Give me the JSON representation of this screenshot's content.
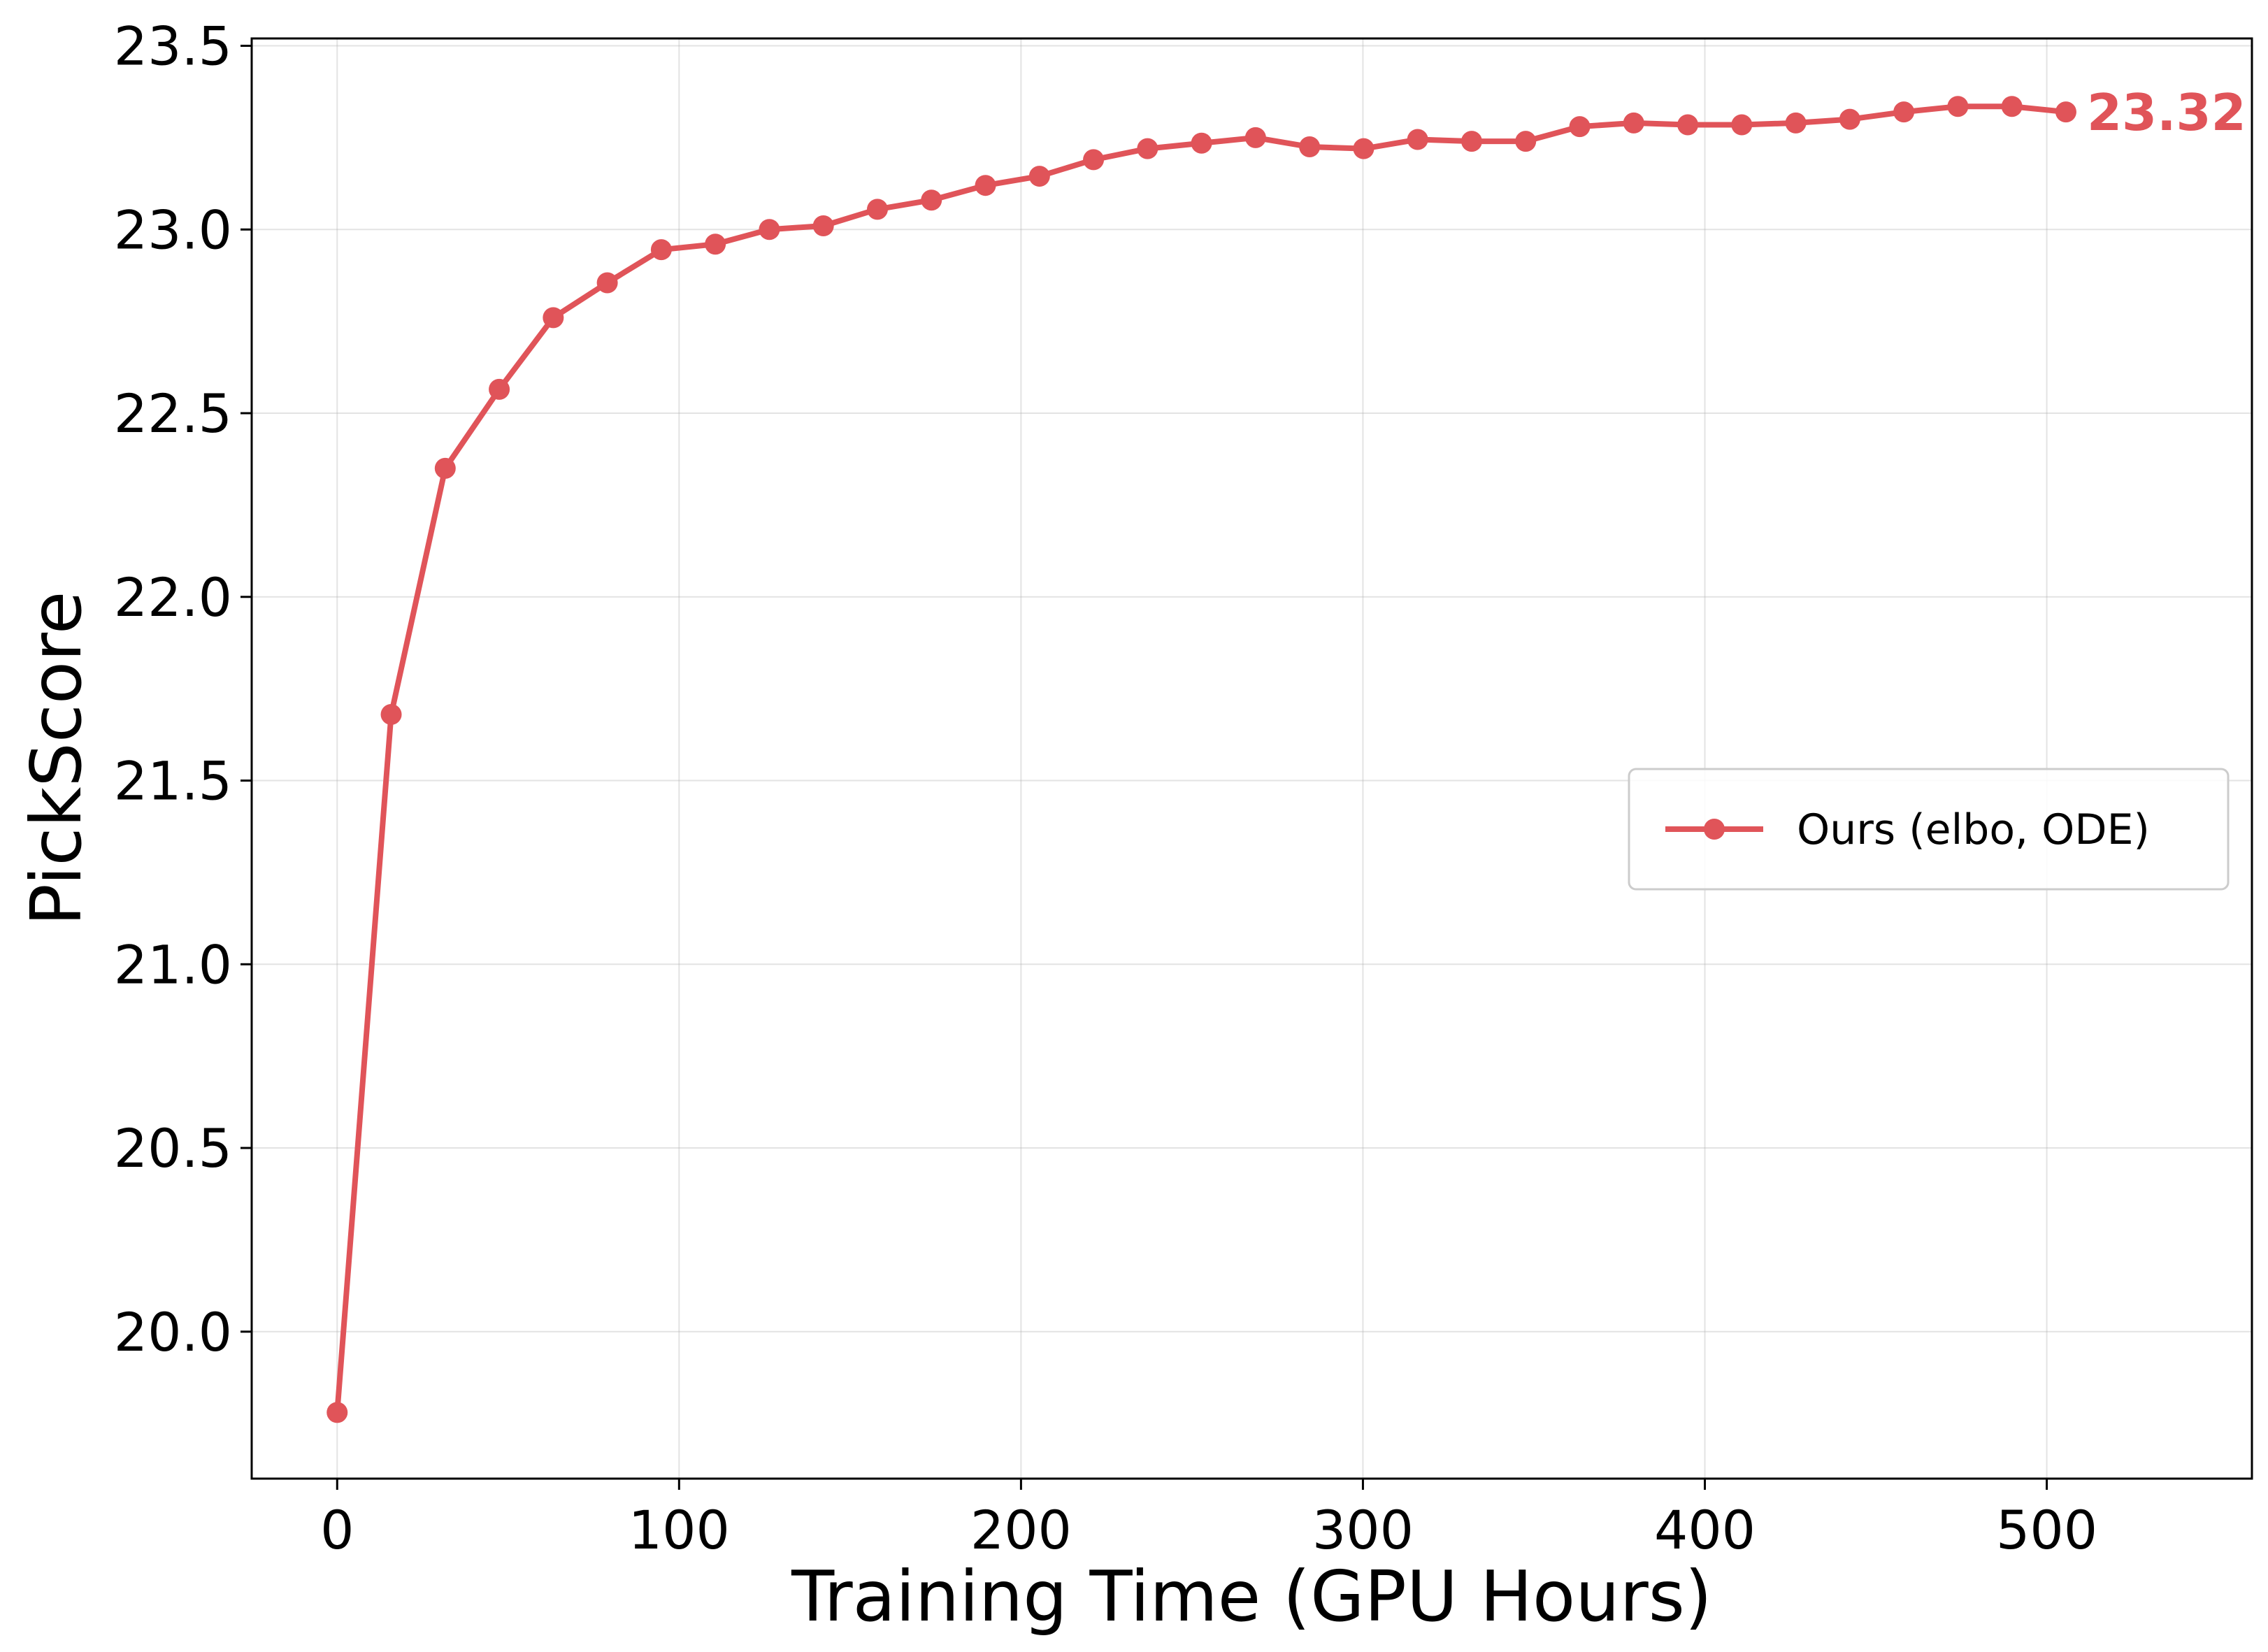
{
  "chart_data": {
    "type": "line",
    "xlabel": "Training Time (GPU Hours)",
    "ylabel": "PickScore",
    "xlim": [
      -25,
      560
    ],
    "ylim": [
      19.6,
      23.52
    ],
    "xticks": [
      0,
      100,
      200,
      300,
      400,
      500
    ],
    "xtick_labels": [
      "0",
      "100",
      "200",
      "300",
      "400",
      "500"
    ],
    "yticks": [
      20.0,
      20.5,
      21.0,
      21.5,
      22.0,
      22.5,
      23.0,
      23.5
    ],
    "ytick_labels": [
      "20.0",
      "20.5",
      "21.0",
      "21.5",
      "22.0",
      "22.5",
      "23.0",
      "23.5"
    ],
    "grid": true,
    "legend_position": "center-right",
    "series": [
      {
        "name": "Ours (elbo, ODE)",
        "color": "#e05459",
        "marker": "circle",
        "x": [
          0,
          15.8,
          31.6,
          47.4,
          63.2,
          79.0,
          94.8,
          110.6,
          126.4,
          142.2,
          158.0,
          173.8,
          189.6,
          205.4,
          221.2,
          237.0,
          252.8,
          268.6,
          284.4,
          300.2,
          316.0,
          331.8,
          347.6,
          363.4,
          379.2,
          395.0,
          410.8,
          426.6,
          442.4,
          458.2,
          474.0,
          489.8,
          505.6
        ],
        "y": [
          19.78,
          21.68,
          22.35,
          22.565,
          22.76,
          22.855,
          22.945,
          22.96,
          23.0,
          23.01,
          23.055,
          23.08,
          23.12,
          23.145,
          23.19,
          23.22,
          23.235,
          23.25,
          23.225,
          23.22,
          23.245,
          23.24,
          23.24,
          23.28,
          23.29,
          23.285,
          23.285,
          23.29,
          23.3,
          23.32,
          23.335,
          23.335,
          23.32
        ]
      }
    ],
    "annotations": [
      {
        "text": "23.32",
        "x": 505.6,
        "y": 23.32,
        "color": "#e05459"
      }
    ]
  }
}
